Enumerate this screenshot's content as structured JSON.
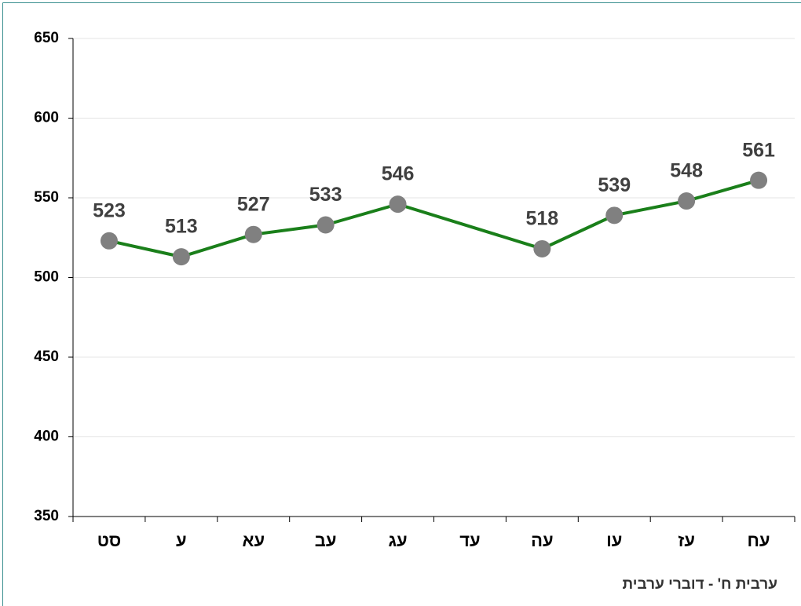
{
  "chart_data": {
    "type": "line",
    "xlabel": "ערבית ח' - דוברי ערבית",
    "categories": [
      "סט",
      "ע",
      "עא",
      "עב",
      "עג",
      "עד",
      "עה",
      "עו",
      "עז",
      "עח"
    ],
    "series": [
      {
        "color": "#1a7f1a",
        "marker_color": "#808080",
        "values": [
          523,
          513,
          527,
          533,
          546,
          null,
          518,
          539,
          548,
          561
        ]
      }
    ],
    "ylim": [
      350,
      650
    ],
    "yticks": [
      350,
      400,
      450,
      500,
      550,
      600,
      650
    ],
    "grid": true
  }
}
